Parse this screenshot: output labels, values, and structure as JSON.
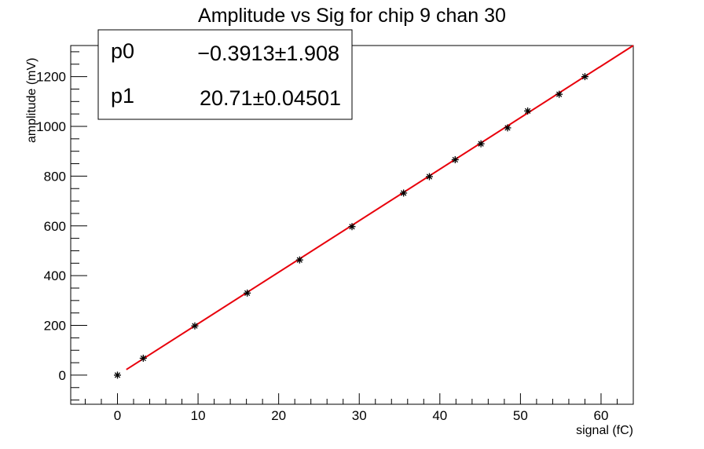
{
  "chart_data": {
    "type": "scatter",
    "title": "Amplitude vs Sig for chip 9 chan 30",
    "xlabel": "signal (fC)",
    "ylabel": "amplitude (mV)",
    "xlim": [
      -5.8,
      64
    ],
    "ylim": [
      -117,
      1325
    ],
    "x_ticks": [
      0,
      10,
      20,
      30,
      40,
      50,
      60
    ],
    "y_ticks": [
      0,
      200,
      400,
      600,
      800,
      1000,
      1200
    ],
    "grid": false,
    "marker": "asterisk",
    "points": [
      {
        "x": 0,
        "y": 0
      },
      {
        "x": 3.2,
        "y": 68
      },
      {
        "x": 9.6,
        "y": 198
      },
      {
        "x": 16.1,
        "y": 330
      },
      {
        "x": 22.6,
        "y": 463
      },
      {
        "x": 29.1,
        "y": 597
      },
      {
        "x": 35.5,
        "y": 732
      },
      {
        "x": 38.7,
        "y": 798
      },
      {
        "x": 41.9,
        "y": 866
      },
      {
        "x": 45.1,
        "y": 930
      },
      {
        "x": 48.4,
        "y": 994
      },
      {
        "x": 50.9,
        "y": 1062
      },
      {
        "x": 54.8,
        "y": 1129
      },
      {
        "x": 58.0,
        "y": 1200
      }
    ],
    "fit": {
      "color": "#e8000b",
      "x_range": [
        1.1,
        64
      ],
      "params": [
        {
          "name": "p0",
          "value": "−0.3913",
          "error": "1.908"
        },
        {
          "name": "p1",
          "value": "20.71",
          "error": "0.04501"
        }
      ]
    },
    "stats_box_placement": "top-left"
  }
}
